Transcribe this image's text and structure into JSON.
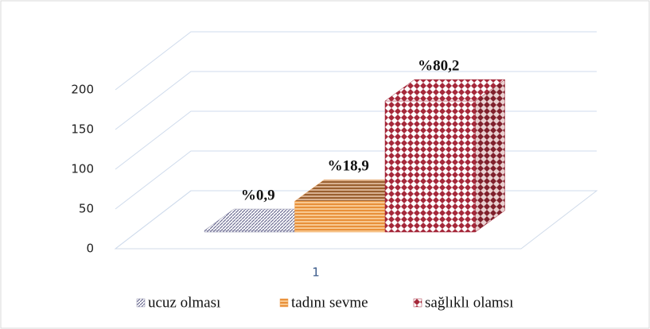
{
  "chart_data": {
    "type": "bar3d",
    "categories": [
      "1"
    ],
    "series": [
      {
        "name": "ucuz olması",
        "color": "#8a8aa8",
        "values": [
          2
        ]
      },
      {
        "name": "tadını sevme",
        "color": "#f0a050",
        "values": [
          40
        ]
      },
      {
        "name": "sağlıklı olamsı",
        "color": "#a5283a",
        "values": [
          170
        ]
      }
    ],
    "annotations": [
      "%0,9",
      "%18,9",
      "%80,2"
    ],
    "ylim": [
      0,
      200
    ],
    "yticks": [
      0,
      50,
      100,
      150,
      200
    ],
    "grid": true,
    "legend": "bottom"
  }
}
